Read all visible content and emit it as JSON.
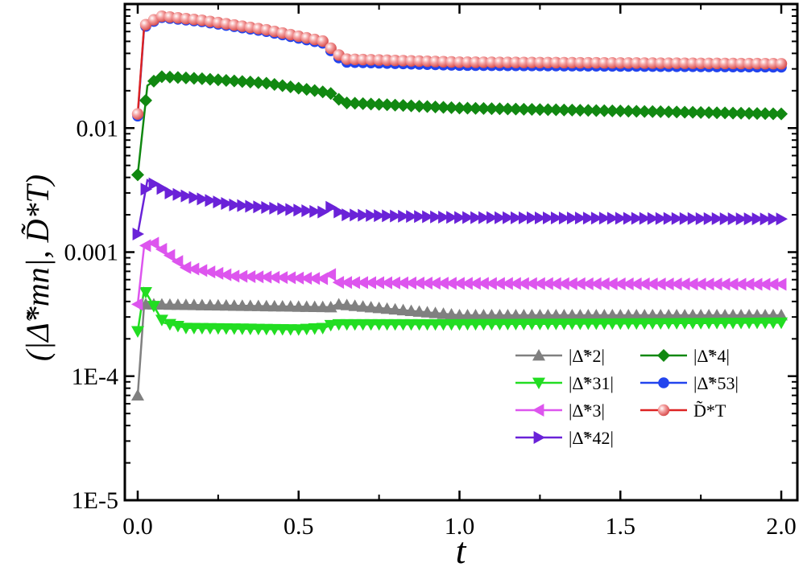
{
  "chart_data": {
    "type": "line",
    "xlabel": "t",
    "ylabel": "(|Δ̃*mn|, D̃*T)",
    "xlim": [
      -0.04,
      2.05
    ],
    "ylim": [
      1e-05,
      0.1
    ],
    "yscale": "log",
    "xticks": [
      0.0,
      0.5,
      1.0,
      1.5,
      2.0
    ],
    "xtick_labels": [
      "0.0",
      "0.5",
      "1.0",
      "1.5",
      "2.0"
    ],
    "yticks": [
      1e-05,
      0.0001,
      0.001,
      0.01
    ],
    "ytick_labels": [
      "1E-5",
      "1E-4",
      "0.001",
      "0.01"
    ],
    "grid": false,
    "legend_position": "bottom-right",
    "series": [
      {
        "name": "|Δ̃*2|",
        "color": "#808080",
        "marker": "triangle-up",
        "points": [
          [
            0.0,
            7e-05
          ],
          [
            0.02,
            0.00038
          ],
          [
            0.6,
            0.00036
          ],
          [
            0.62,
            0.00038
          ],
          [
            1.0,
            0.00031
          ],
          [
            2.0,
            0.00031
          ]
        ]
      },
      {
        "name": "|Δ̃*31|",
        "color": "#22dd22",
        "marker": "triangle-down",
        "points": [
          [
            0.0,
            0.00023
          ],
          [
            0.02,
            0.0005
          ],
          [
            0.08,
            0.00027
          ],
          [
            0.15,
            0.000245
          ],
          [
            0.5,
            0.000238
          ],
          [
            0.58,
            0.000245
          ],
          [
            0.6,
            0.000258
          ],
          [
            0.62,
            0.000262
          ],
          [
            1.0,
            0.000262
          ],
          [
            2.0,
            0.00027
          ]
        ]
      },
      {
        "name": "|Δ̃*3|",
        "color": "#dd55ee",
        "marker": "triangle-left",
        "points": [
          [
            0.0,
            0.00038
          ],
          [
            0.02,
            0.00112
          ],
          [
            0.05,
            0.00118
          ],
          [
            0.15,
            0.00075
          ],
          [
            0.3,
            0.00064
          ],
          [
            0.58,
            0.00061
          ],
          [
            0.6,
            0.00066
          ],
          [
            0.62,
            0.00057
          ],
          [
            1.0,
            0.00056
          ],
          [
            2.0,
            0.00055
          ]
        ]
      },
      {
        "name": "|Δ̃*42|",
        "color": "#6a22d8",
        "marker": "triangle-right",
        "points": [
          [
            0.0,
            0.0014
          ],
          [
            0.03,
            0.0038
          ],
          [
            0.1,
            0.003
          ],
          [
            0.3,
            0.0024
          ],
          [
            0.58,
            0.0021
          ],
          [
            0.6,
            0.0023
          ],
          [
            0.64,
            0.002
          ],
          [
            1.0,
            0.0019
          ],
          [
            2.0,
            0.00185
          ]
        ]
      },
      {
        "name": "|Δ̃*4|",
        "color": "#118811",
        "marker": "diamond",
        "points": [
          [
            0.0,
            0.0042
          ],
          [
            0.03,
            0.022
          ],
          [
            0.07,
            0.026
          ],
          [
            0.2,
            0.025
          ],
          [
            0.4,
            0.023
          ],
          [
            0.58,
            0.0195
          ],
          [
            0.6,
            0.019
          ],
          [
            0.64,
            0.016
          ],
          [
            1.0,
            0.0145
          ],
          [
            2.0,
            0.013
          ]
        ]
      },
      {
        "name": "|Δ̃*53|",
        "color": "#2244ee",
        "marker": "circle",
        "points": [
          [
            0.0,
            0.0125
          ],
          [
            0.02,
            0.065
          ],
          [
            0.07,
            0.078
          ],
          [
            0.2,
            0.072
          ],
          [
            0.4,
            0.06
          ],
          [
            0.58,
            0.048
          ],
          [
            0.6,
            0.042
          ],
          [
            0.64,
            0.034
          ],
          [
            1.0,
            0.032
          ],
          [
            2.0,
            0.031
          ]
        ]
      },
      {
        "name": "D̃*T",
        "color": "#dd2222",
        "marker": "ball",
        "marker_color": "#f09090",
        "points": [
          [
            0.0,
            0.013
          ],
          [
            0.02,
            0.067
          ],
          [
            0.07,
            0.08
          ],
          [
            0.2,
            0.074
          ],
          [
            0.4,
            0.062
          ],
          [
            0.58,
            0.05
          ],
          [
            0.6,
            0.044
          ],
          [
            0.64,
            0.036
          ],
          [
            1.0,
            0.034
          ],
          [
            2.0,
            0.033
          ]
        ]
      }
    ]
  }
}
